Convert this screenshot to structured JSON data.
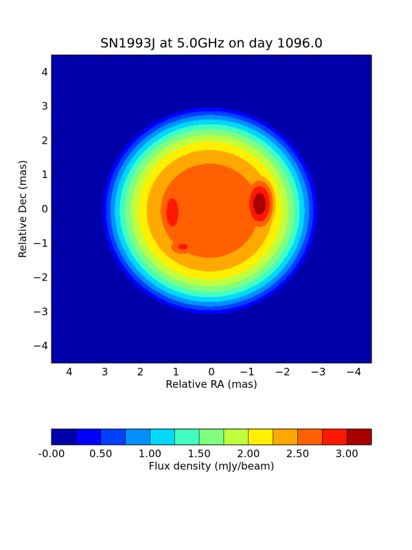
{
  "chart_data": {
    "type": "heatmap",
    "title": "SN1993J at 5.0GHz on day 1096.0",
    "xlabel": "Relative RA (mas)",
    "ylabel": "Relative Dec (mas)",
    "xlim": [
      4.5,
      -4.5
    ],
    "ylim": [
      -4.5,
      4.5
    ],
    "x_ticks": [
      "4",
      "3",
      "2",
      "1",
      "0",
      "−1",
      "−2",
      "−3",
      "−4"
    ],
    "x_tick_values": [
      4,
      3,
      2,
      1,
      0,
      -1,
      -2,
      -3,
      -4
    ],
    "y_ticks": [
      "−4",
      "−3",
      "−2",
      "−1",
      "0",
      "1",
      "2",
      "3",
      "4"
    ],
    "y_tick_values": [
      -4,
      -3,
      -2,
      -1,
      0,
      1,
      2,
      3,
      4
    ],
    "contour_levels": [
      0.25,
      0.5,
      0.75,
      1.0,
      1.25,
      1.5,
      1.75,
      2.0,
      2.25,
      2.5,
      2.75,
      3.0
    ],
    "shell": {
      "center": [
        0.05,
        -0.05
      ],
      "outer_radius": 3.1,
      "peak_flux": 2.55,
      "rim_radius": 1.1
    },
    "hotspots": [
      {
        "ra": -1.35,
        "dec": 0.15,
        "flux": 3.15,
        "sigma_ra": 0.55,
        "sigma_dec": 1.0
      },
      {
        "ra": 1.1,
        "dec": -0.1,
        "flux": 2.95,
        "sigma_ra": 0.45,
        "sigma_dec": 1.1
      },
      {
        "ra": 0.8,
        "dec": -1.1,
        "flux": 2.8,
        "sigma_ra": 0.7,
        "sigma_dec": 0.45
      }
    ],
    "center_hole": {
      "ra": 0.1,
      "dec": 0.25,
      "flux": 2.35,
      "sigma_ra": 0.45,
      "sigma_dec": 0.7
    },
    "colorbar": {
      "label": "Flux density (mJy/beam)",
      "ticks": [
        "-0.00",
        "0.50",
        "1.00",
        "1.50",
        "2.00",
        "2.50",
        "3.00"
      ],
      "tick_values": [
        0,
        0.5,
        1.0,
        1.5,
        2.0,
        2.5,
        3.0
      ],
      "range": [
        0,
        3.25
      ],
      "colors": [
        "#0000aa",
        "#0000ff",
        "#0040ff",
        "#0090ff",
        "#00d8ff",
        "#40ffc0",
        "#80ff80",
        "#c0ff40",
        "#fff000",
        "#ffa800",
        "#ff6000",
        "#ff1800",
        "#a80000"
      ]
    }
  }
}
